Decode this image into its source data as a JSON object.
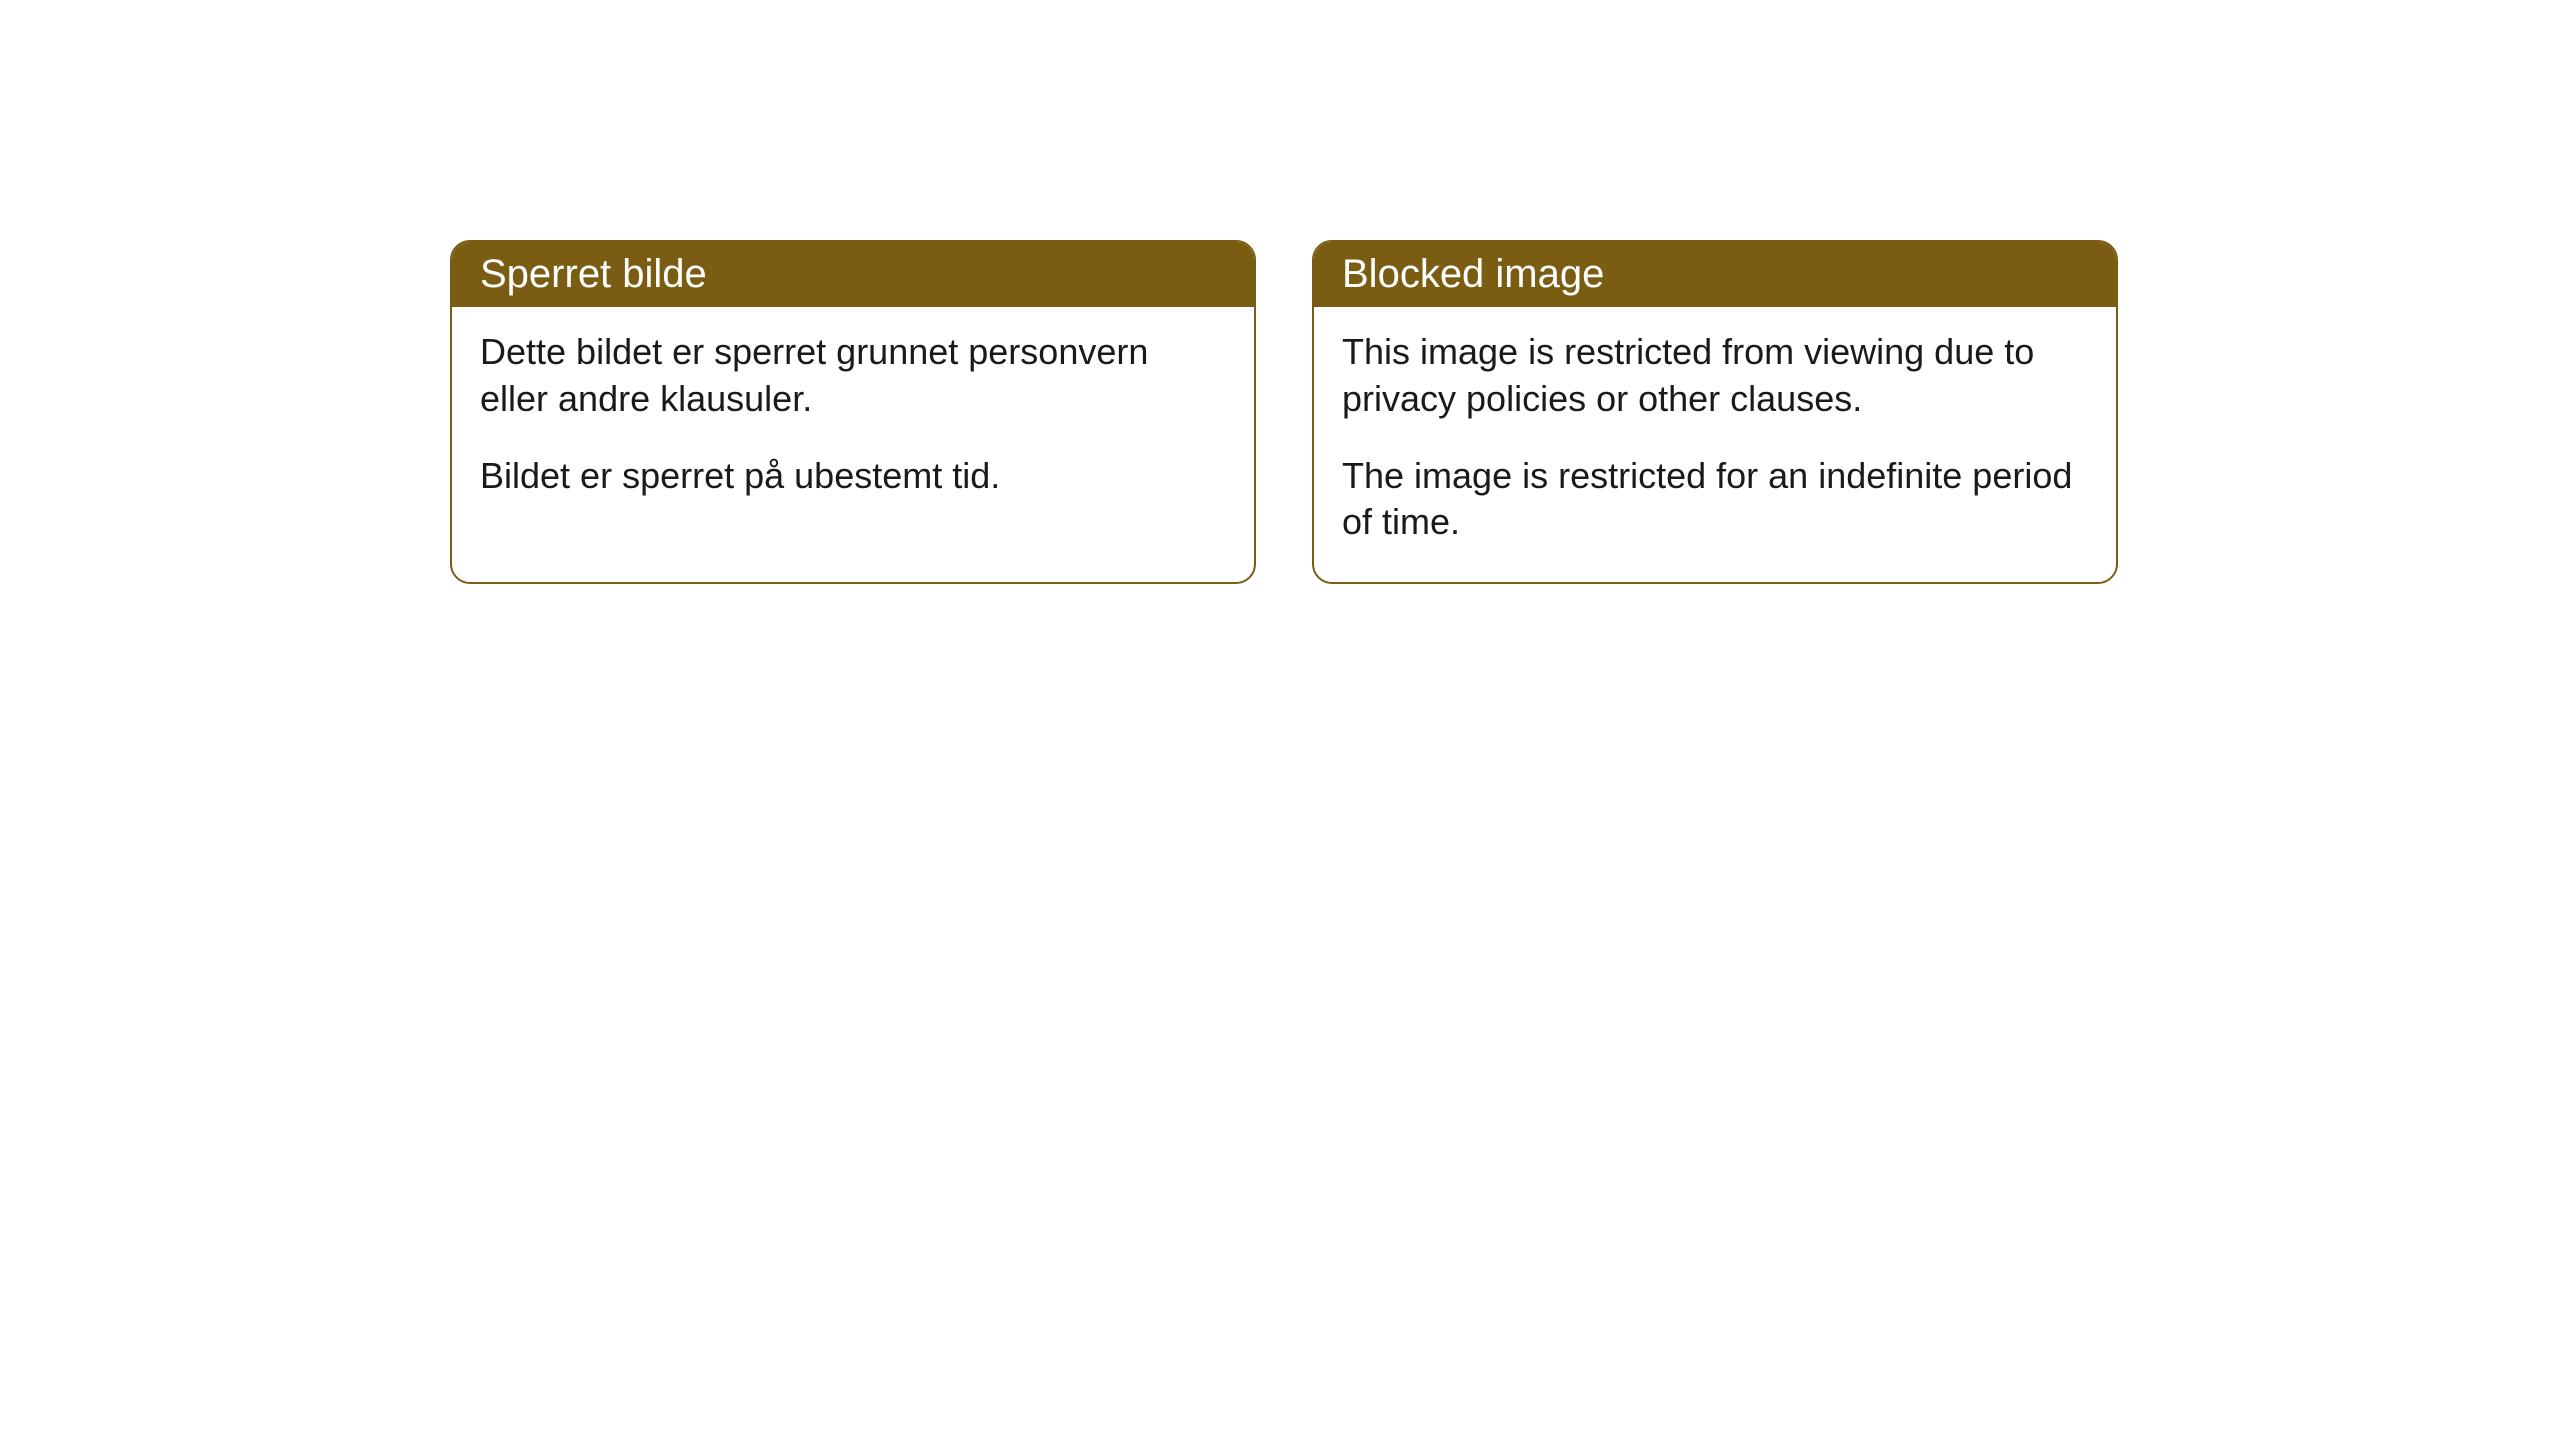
{
  "cards": [
    {
      "title": "Sperret bilde",
      "paragraph1": "Dette bildet er sperret grunnet personvern eller andre klausuler.",
      "paragraph2": "Bildet er sperret på ubestemt tid."
    },
    {
      "title": "Blocked image",
      "paragraph1": "This image is restricted from viewing due to privacy policies or other clauses.",
      "paragraph2": "The image is restricted for an indefinite period of time."
    }
  ],
  "style": {
    "header_bg": "#7a5d12",
    "header_text": "#ffffff",
    "border_color": "#7a5d12",
    "body_bg": "#ffffff",
    "body_text": "#1a1a1a",
    "border_radius": 20,
    "title_fontsize": 40,
    "body_fontsize": 36
  }
}
